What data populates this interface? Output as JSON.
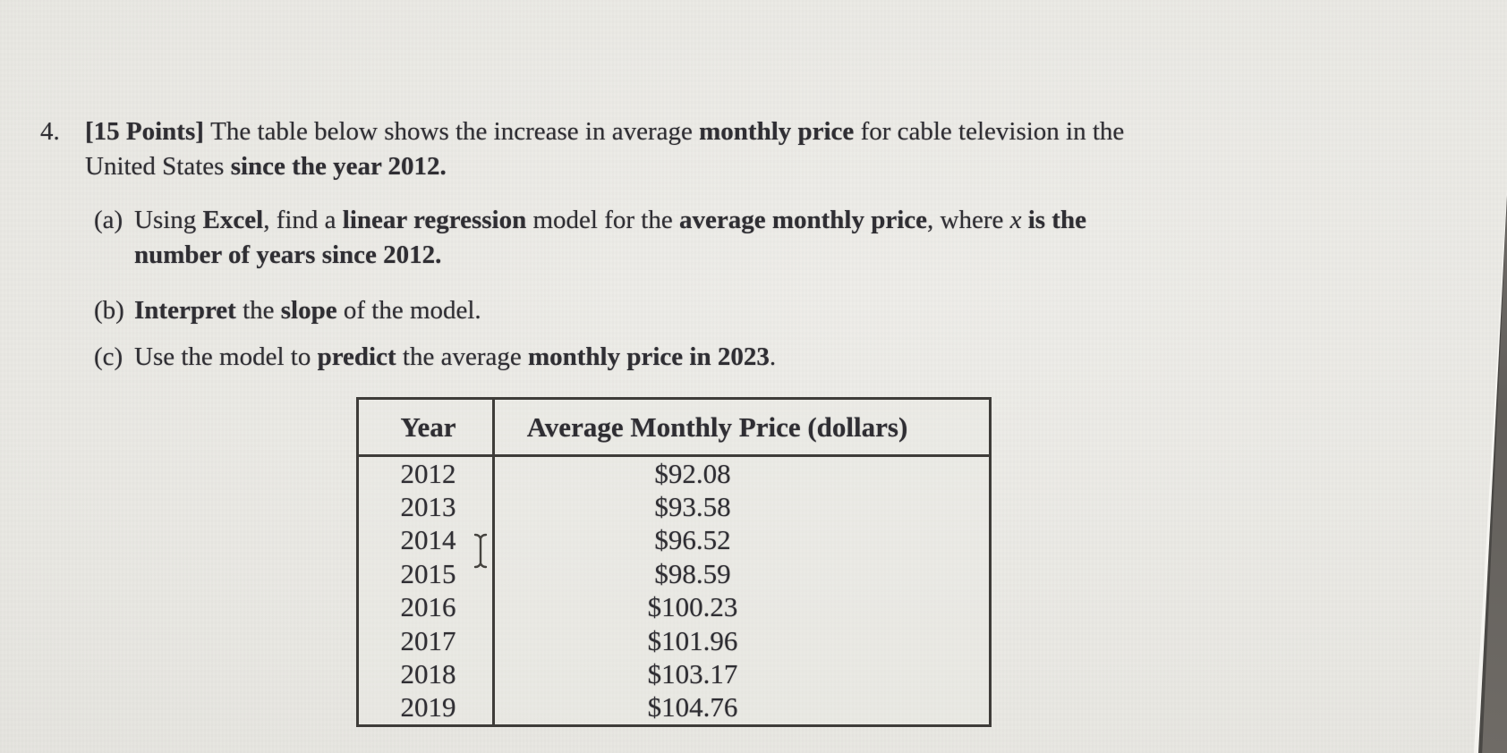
{
  "problem": {
    "number": "4.",
    "statement": [
      {
        "t": "[15 Points] ",
        "b": true
      },
      {
        "t": "The table below shows the increase in average "
      },
      {
        "t": "monthly price",
        "b": true
      },
      {
        "t": " for cable television in the"
      },
      {
        "br": true
      },
      {
        "t": "United States "
      },
      {
        "t": "since the year 2012.",
        "b": true
      }
    ],
    "parts": [
      {
        "label": "(a)",
        "segments": [
          {
            "t": "Using "
          },
          {
            "t": "Excel",
            "b": true
          },
          {
            "t": ", find a "
          },
          {
            "t": "linear regression",
            "b": true
          },
          {
            "t": " model for the "
          },
          {
            "t": "average monthly price",
            "b": true
          },
          {
            "t": ", where "
          },
          {
            "t": "x",
            "i": true
          },
          {
            "t": " "
          },
          {
            "t": "is the",
            "b": true
          },
          {
            "br": true
          },
          {
            "t": "number of years since 2012.",
            "b": true
          }
        ]
      },
      {
        "label": "(b)",
        "segments": [
          {
            "t": "Interpret",
            "b": true
          },
          {
            "t": " the "
          },
          {
            "t": "slope",
            "b": true
          },
          {
            "t": " of the model."
          }
        ]
      },
      {
        "label": "(c)",
        "segments": [
          {
            "t": "Use the model to "
          },
          {
            "t": "predict",
            "b": true
          },
          {
            "t": " the average "
          },
          {
            "t": "monthly price in 2023",
            "b": true
          },
          {
            "t": "."
          }
        ]
      }
    ]
  },
  "table": {
    "headers": [
      "Year",
      "Average Monthly Price (dollars)"
    ],
    "rows": [
      {
        "year": "2012",
        "price": "$92.08"
      },
      {
        "year": "2013",
        "price": "$93.58"
      },
      {
        "year": "2014",
        "price": "$96.52"
      },
      {
        "year": "2015",
        "price": "$98.59"
      },
      {
        "year": "2016",
        "price": "$100.23"
      },
      {
        "year": "2017",
        "price": "$101.96"
      },
      {
        "year": "2018",
        "price": "$103.17"
      },
      {
        "year": "2019",
        "price": "$104.76"
      }
    ]
  },
  "colors": {
    "paper": "#e9e8e3",
    "ink": "#2f2e33",
    "table_border": "#3e3c39",
    "desk": "#6e6a65"
  },
  "cursor": {
    "type": "text-ibeam"
  }
}
